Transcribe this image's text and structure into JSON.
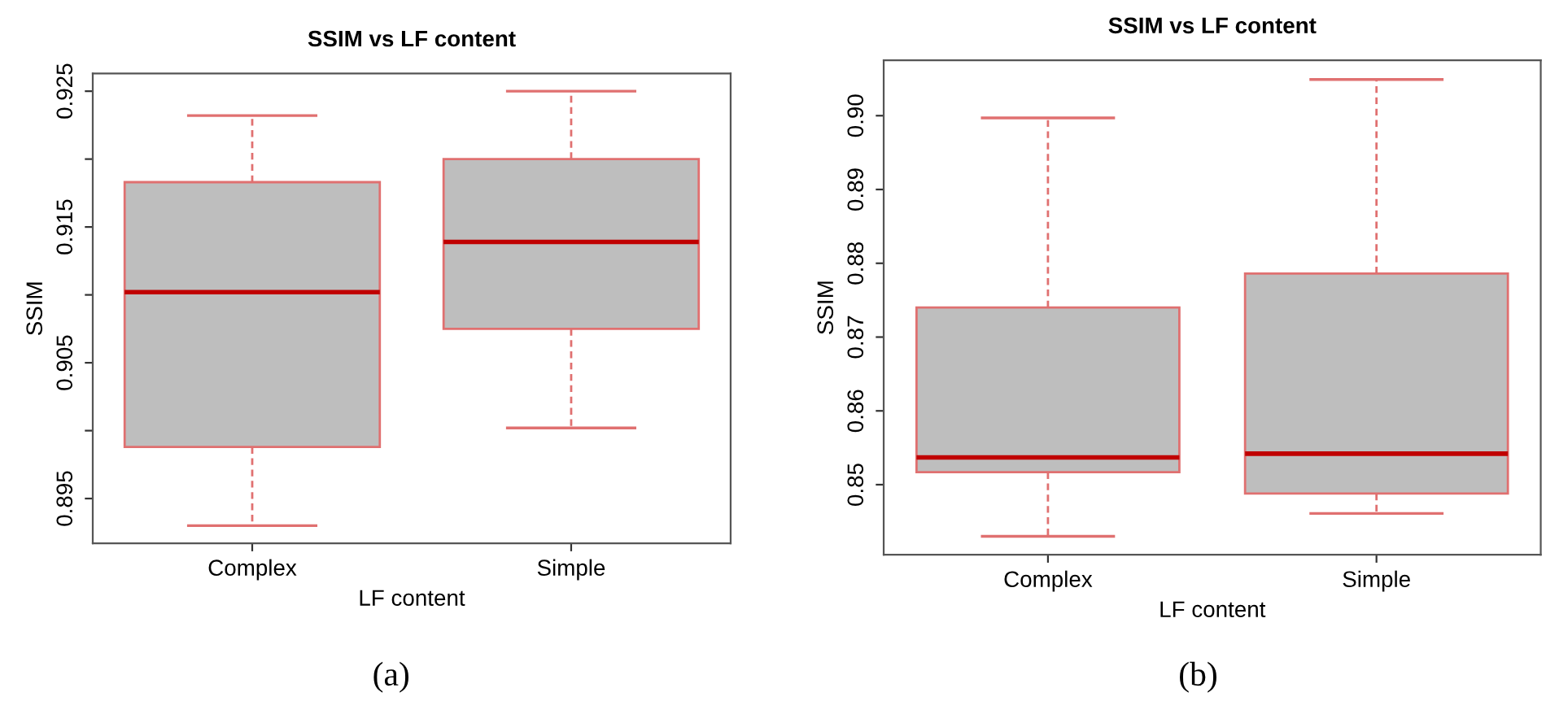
{
  "chart_data": [
    {
      "type": "box",
      "title": "SSIM vs LF content",
      "xlabel": "LF content",
      "ylabel": "SSIM",
      "categories": [
        "Complex",
        "Simple"
      ],
      "colors": [
        "#bebebe",
        "#bebebe"
      ],
      "boxes": [
        {
          "low": 0.893,
          "q1": 0.8988,
          "median": 0.9102,
          "q3": 0.9183,
          "high": 0.9232
        },
        {
          "low": 0.9002,
          "q1": 0.9075,
          "median": 0.9139,
          "q3": 0.92,
          "high": 0.925
        }
      ],
      "ylim": [
        0.8917,
        0.9263
      ],
      "yticks": [
        0.895,
        {
          "value": 0.9,
          "label": null
        },
        0.905,
        {
          "value": 0.91,
          "label": null
        },
        0.915,
        {
          "value": 0.92,
          "label": null
        },
        0.925
      ],
      "annotations": [
        "(a)"
      ]
    },
    {
      "type": "box",
      "title": "SSIM vs LF content",
      "xlabel": "LF content",
      "ylabel": "SSIM",
      "categories": [
        "Complex",
        "Simple"
      ],
      "colors": [
        "#bebebe",
        "#bebebe"
      ],
      "boxes": [
        {
          "low": 0.843,
          "q1": 0.8517,
          "median": 0.8537,
          "q3": 0.874,
          "high": 0.8997
        },
        {
          "low": 0.8461,
          "q1": 0.8488,
          "median": 0.8542,
          "q3": 0.8786,
          "high": 0.9049
        }
      ],
      "ylim": [
        0.8405,
        0.9075
      ],
      "yticks": [
        0.85,
        0.86,
        0.87,
        0.88,
        0.89,
        {
          "value": 0.9,
          "label": "0.90"
        }
      ],
      "annotations": [
        "(b)"
      ]
    }
  ]
}
